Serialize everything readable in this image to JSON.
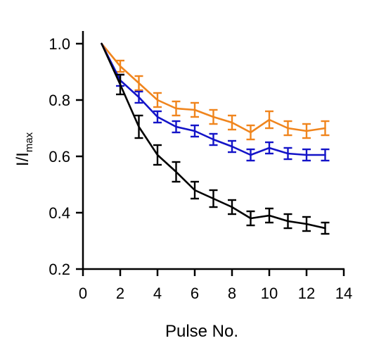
{
  "chart_data": {
    "type": "line",
    "title": "",
    "xlabel": "Pulse No.",
    "ylabel": {
      "main": "I/I",
      "sub": "max"
    },
    "xlim": [
      0,
      14
    ],
    "ylim": [
      0.2,
      1.05
    ],
    "xticks": [
      "0",
      "2",
      "4",
      "6",
      "8",
      "10",
      "12",
      "14"
    ],
    "yticks": [
      "0.2",
      "0.4",
      "0.6",
      "0.8",
      "1.0"
    ],
    "grid": false,
    "legend": "none",
    "x": [
      1,
      2,
      3,
      4,
      5,
      6,
      7,
      8,
      9,
      10,
      11,
      12,
      13
    ],
    "series": [
      {
        "color": "#f0851d",
        "values": [
          1.0,
          0.92,
          0.86,
          0.8,
          0.77,
          0.765,
          0.74,
          0.72,
          0.685,
          0.73,
          0.7,
          0.69,
          0.7
        ],
        "errors": [
          0.0,
          0.02,
          0.025,
          0.025,
          0.025,
          0.025,
          0.025,
          0.025,
          0.025,
          0.03,
          0.025,
          0.025,
          0.025
        ]
      },
      {
        "color": "#1414c8",
        "values": [
          1.0,
          0.87,
          0.81,
          0.74,
          0.705,
          0.69,
          0.66,
          0.635,
          0.605,
          0.63,
          0.61,
          0.605,
          0.605
        ],
        "errors": [
          0.0,
          0.02,
          0.02,
          0.02,
          0.02,
          0.02,
          0.02,
          0.02,
          0.02,
          0.02,
          0.02,
          0.02,
          0.02
        ]
      },
      {
        "color": "#000000",
        "values": [
          1.0,
          0.855,
          0.705,
          0.605,
          0.545,
          0.48,
          0.45,
          0.42,
          0.38,
          0.39,
          0.37,
          0.36,
          0.345
        ],
        "errors": [
          0.0,
          0.035,
          0.04,
          0.035,
          0.035,
          0.03,
          0.03,
          0.025,
          0.025,
          0.025,
          0.025,
          0.025,
          0.02
        ]
      }
    ]
  }
}
